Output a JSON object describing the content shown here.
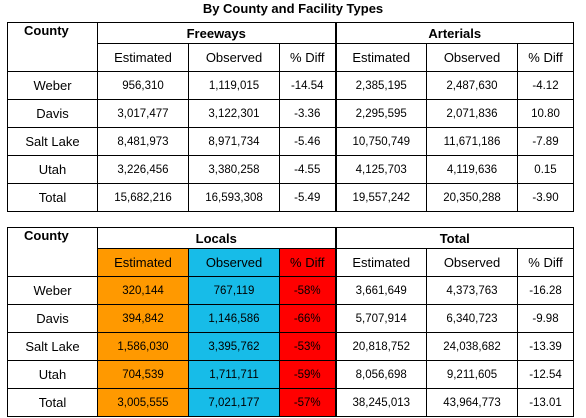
{
  "title": "By County and Facility Types",
  "table1": {
    "county_header": "County",
    "group1": "Freeways",
    "group2": "Arterials",
    "subheaders": [
      "Estimated",
      "Observed",
      "% Diff",
      "Estimated",
      "Observed",
      "% Diff"
    ],
    "rows": [
      {
        "county": "Weber",
        "fe": "956,310",
        "fo": "1,119,015",
        "fd": "-14.54",
        "ae": "2,385,195",
        "ao": "2,487,630",
        "ad": "-4.12"
      },
      {
        "county": "Davis",
        "fe": "3,017,477",
        "fo": "3,122,301",
        "fd": "-3.36",
        "ae": "2,295,595",
        "ao": "2,071,836",
        "ad": "10.80"
      },
      {
        "county": "Salt Lake",
        "fe": "8,481,973",
        "fo": "8,971,734",
        "fd": "-5.46",
        "ae": "10,750,749",
        "ao": "11,671,186",
        "ad": "-7.89"
      },
      {
        "county": "Utah",
        "fe": "3,226,456",
        "fo": "3,380,258",
        "fd": "-4.55",
        "ae": "4,125,703",
        "ao": "4,119,636",
        "ad": "0.15"
      },
      {
        "county": "Total",
        "fe": "15,682,216",
        "fo": "16,593,308",
        "fd": "-5.49",
        "ae": "19,557,242",
        "ao": "20,350,288",
        "ad": "-3.90"
      }
    ]
  },
  "table2": {
    "county_header": "County",
    "group1": "Locals",
    "group2": "Total",
    "subheaders": [
      "Estimated",
      "Observed",
      "% Diff",
      "Estimated",
      "Observed",
      "% Diff"
    ],
    "rows": [
      {
        "county": "Weber",
        "le": "320,144",
        "lo": "767,119",
        "ld": "-58%",
        "te": "3,661,649",
        "to": "4,373,763",
        "td": "-16.28"
      },
      {
        "county": "Davis",
        "le": "394,842",
        "lo": "1,146,586",
        "ld": "-66%",
        "te": "5,707,914",
        "to": "6,340,723",
        "td": "-9.98"
      },
      {
        "county": "Salt Lake",
        "le": "1,586,030",
        "lo": "3,395,762",
        "ld": "-53%",
        "te": "20,818,752",
        "to": "24,038,682",
        "td": "-13.39"
      },
      {
        "county": "Utah",
        "le": "704,539",
        "lo": "1,711,711",
        "ld": "-59%",
        "te": "8,056,698",
        "to": "9,211,605",
        "td": "-12.54"
      },
      {
        "county": "Total",
        "le": "3,005,555",
        "lo": "7,021,177",
        "ld": "-57%",
        "te": "38,245,013",
        "to": "43,964,773",
        "td": "-13.01"
      }
    ]
  },
  "colors": {
    "estimated_fill": "#ff9900",
    "observed_fill": "#17bce8",
    "diff_fill": "#ff0000"
  }
}
